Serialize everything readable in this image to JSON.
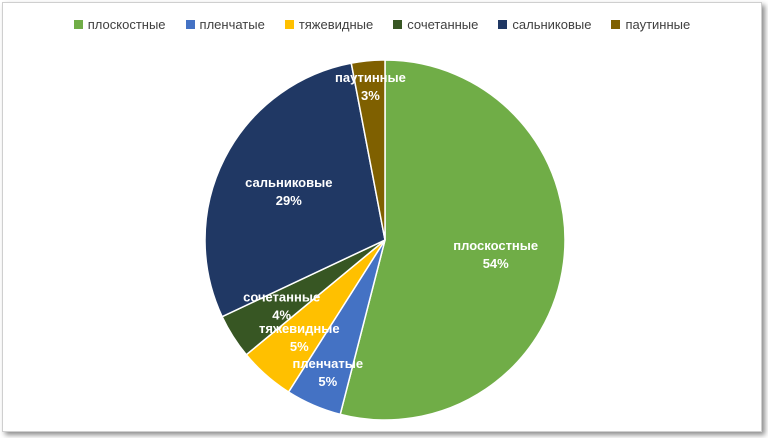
{
  "chart_data": {
    "type": "pie",
    "title": "",
    "legend_position": "top",
    "categories": [
      "плоскостные",
      "пленчатые",
      "тяжевидные",
      "сочетанные",
      "сальниковые",
      "паутинные"
    ],
    "values": [
      54,
      5,
      5,
      4,
      29,
      3
    ],
    "value_labels": [
      "54%",
      "5%",
      "5%",
      "4%",
      "29%",
      "3%"
    ],
    "colors": [
      "#70ad47",
      "#4472c4",
      "#ffc000",
      "#375623",
      "#203864",
      "#7f6000"
    ]
  }
}
